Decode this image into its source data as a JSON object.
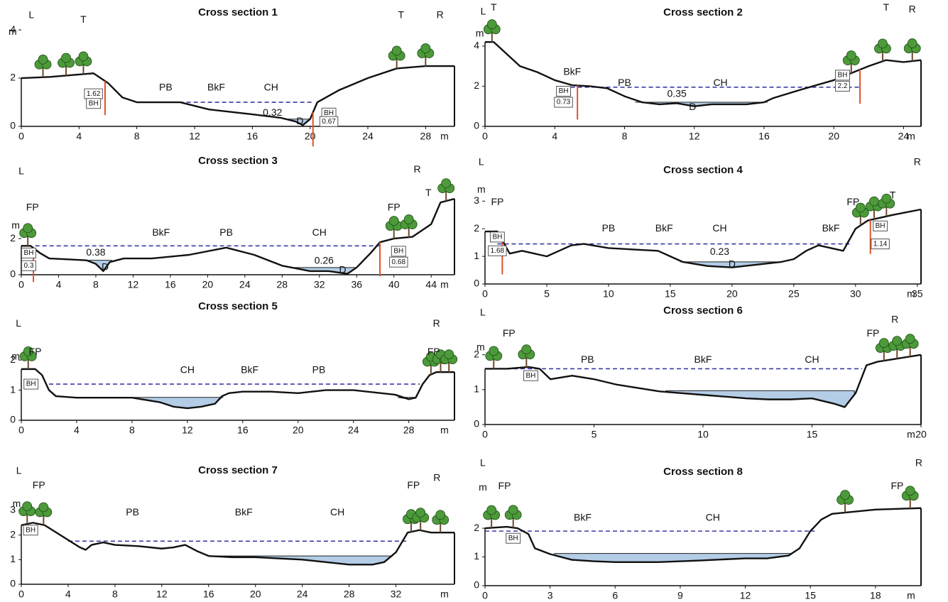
{
  "chart_data": [
    {
      "type": "profile",
      "title": "Cross section 1",
      "x": [
        0,
        2,
        4,
        5,
        6,
        7,
        8,
        11,
        13,
        16,
        18,
        19,
        19.5,
        20,
        20.5,
        22,
        24,
        26,
        28,
        30
      ],
      "values": [
        2,
        2.05,
        2.15,
        2.2,
        1.8,
        1.2,
        1.0,
        1.0,
        0.7,
        0.5,
        0.35,
        0.2,
        0.05,
        0.3,
        1.0,
        1.5,
        2.0,
        2.4,
        2.5,
        2.5
      ],
      "xlim": [
        0,
        30
      ],
      "ylim": [
        0,
        4.12
      ],
      "xticks": [
        0,
        4,
        8,
        12,
        16,
        20,
        24,
        28
      ],
      "yticks": [
        0,
        2,
        4
      ],
      "x_unit": "m",
      "bankfull": {
        "level": 1.0,
        "from": 8,
        "to": 20.2
      },
      "water": [
        {
          "level": 0.3,
          "from": 18.2,
          "to": 20
        }
      ],
      "annotations": [
        {
          "text": "m",
          "x": -0.6,
          "y": 3.9
        },
        {
          "text": "L",
          "x": 0.7,
          "y": 4.6
        },
        {
          "text": "T",
          "x": 4.3,
          "y": 4.4
        },
        {
          "text": "T",
          "x": 26.3,
          "y": 4.6
        },
        {
          "text": "R",
          "x": 29,
          "y": 4.6
        },
        {
          "text": "PB",
          "x": 10,
          "y": 1.6
        },
        {
          "text": "BkF",
          "x": 13.5,
          "y": 1.6
        },
        {
          "text": "CH",
          "x": 17.3,
          "y": 1.6
        },
        {
          "text": "1.62",
          "x": 5,
          "y": 1.35,
          "box": true
        },
        {
          "text": "BH",
          "x": 5,
          "y": 0.95,
          "box": true
        },
        {
          "text": "0.32",
          "x": 17.4,
          "y": 0.55
        },
        {
          "text": "D",
          "x": 19.3,
          "y": 0.2
        },
        {
          "text": "BH",
          "x": 21.3,
          "y": 0.55,
          "box": true
        },
        {
          "text": "0.67",
          "x": 21.3,
          "y": 0.2,
          "box": true
        }
      ]
    },
    {
      "type": "profile",
      "title": "Cross section 2",
      "x": [
        0,
        0.5,
        1,
        2,
        3,
        4,
        5,
        6,
        7,
        8,
        9,
        10,
        11,
        12,
        13,
        14,
        15,
        16,
        16.5,
        18,
        20,
        22,
        23,
        24,
        25
      ],
      "values": [
        4.2,
        4.2,
        3.8,
        3.0,
        2.7,
        2.3,
        2.05,
        2.0,
        1.9,
        1.5,
        1.2,
        1.1,
        1.15,
        1.0,
        1.1,
        1.1,
        1.1,
        1.2,
        1.4,
        1.8,
        2.3,
        3.0,
        3.3,
        3.2,
        3.3
      ],
      "xlim": [
        0,
        25
      ],
      "ylim": [
        0,
        4.95
      ],
      "xticks": [
        0,
        4,
        8,
        12,
        16,
        20,
        24
      ],
      "yticks": [
        0,
        2,
        4
      ],
      "x_unit": "m",
      "bankfull": {
        "level": 1.95,
        "from": 4.5,
        "to": 21.5
      },
      "water": [
        {
          "level": 1.2,
          "from": 8.6,
          "to": 16.2
        }
      ],
      "annotations": [
        {
          "text": "m",
          "x": -0.3,
          "y": 4.6
        },
        {
          "text": "L",
          "x": -0.1,
          "y": 5.7
        },
        {
          "text": "T",
          "x": 0.5,
          "y": 5.9
        },
        {
          "text": "T",
          "x": 23,
          "y": 5.9
        },
        {
          "text": "R",
          "x": 24.5,
          "y": 5.8
        },
        {
          "text": "BkF",
          "x": 5,
          "y": 2.7
        },
        {
          "text": "PB",
          "x": 8,
          "y": 2.15
        },
        {
          "text": "CH",
          "x": 13.5,
          "y": 2.15
        },
        {
          "text": "0.35",
          "x": 11,
          "y": 1.6
        },
        {
          "text": "D",
          "x": 11.9,
          "y": 0.95
        },
        {
          "text": "BH",
          "x": 4.5,
          "y": 1.75,
          "box": true
        },
        {
          "text": "0.73",
          "x": 4.5,
          "y": 1.2,
          "box": true
        },
        {
          "text": "BH",
          "x": 20.5,
          "y": 2.55,
          "box": true
        },
        {
          "text": "2.2",
          "x": 20.5,
          "y": 2.0,
          "box": true
        }
      ]
    },
    {
      "type": "profile",
      "title": "Cross section 3",
      "x": [
        0,
        1,
        2,
        3,
        5,
        7,
        8,
        8.8,
        9.5,
        11,
        14,
        18,
        22,
        25,
        28,
        30,
        31,
        33,
        35,
        36,
        37.5,
        38.5,
        40,
        42,
        44,
        45,
        46.5
      ],
      "values": [
        1.6,
        1.6,
        1.2,
        0.9,
        0.85,
        0.8,
        0.6,
        0.2,
        0.7,
        0.9,
        0.9,
        1.1,
        1.5,
        1.1,
        0.5,
        0.3,
        0.2,
        0.2,
        0.05,
        0.4,
        1.2,
        1.8,
        2.0,
        2.1,
        2.8,
        4.0,
        4.2
      ],
      "xlim": [
        0,
        46.5
      ],
      "ylim": [
        0,
        5.5
      ],
      "xticks": [
        0,
        4,
        8,
        12,
        16,
        20,
        24,
        28,
        32,
        36,
        40,
        44
      ],
      "yticks": [
        0,
        2
      ],
      "x_unit": "m",
      "bankfull": {
        "level": 1.6,
        "from": 1.5,
        "to": 38.5
      },
      "water": [
        {
          "level": 0.8,
          "from": 7.2,
          "to": 9.7
        },
        {
          "level": 0.4,
          "from": 29,
          "to": 36
        }
      ],
      "annotations": [
        {
          "text": "L",
          "x": 0,
          "y": 5.7
        },
        {
          "text": "m",
          "x": -0.6,
          "y": 2.7
        },
        {
          "text": "FP",
          "x": 1.2,
          "y": 3.7
        },
        {
          "text": "R",
          "x": 42.5,
          "y": 5.8
        },
        {
          "text": "T",
          "x": 43.7,
          "y": 4.5
        },
        {
          "text": "FP",
          "x": 40,
          "y": 3.7
        },
        {
          "text": "BkF",
          "x": 15,
          "y": 2.3
        },
        {
          "text": "PB",
          "x": 22,
          "y": 2.3
        },
        {
          "text": "CH",
          "x": 32,
          "y": 2.3
        },
        {
          "text": "0.38",
          "x": 8,
          "y": 1.2
        },
        {
          "text": "D",
          "x": 9,
          "y": 0.4
        },
        {
          "text": "0.26",
          "x": 32.5,
          "y": 0.75
        },
        {
          "text": "D",
          "x": 34.5,
          "y": 0.25
        },
        {
          "text": "BH",
          "x": 0.8,
          "y": 1.2,
          "box": true
        },
        {
          "text": "0.3",
          "x": 0.8,
          "y": 0.5,
          "box": true
        },
        {
          "text": "BH",
          "x": 40.5,
          "y": 1.3,
          "box": true
        },
        {
          "text": "0.68",
          "x": 40.5,
          "y": 0.7,
          "box": true
        }
      ]
    },
    {
      "type": "profile",
      "title": "Cross section 4",
      "x": [
        0,
        1,
        1.5,
        2,
        3,
        4,
        5,
        6,
        7,
        8,
        10,
        12,
        14,
        15,
        16,
        18,
        20,
        22,
        24,
        25,
        26,
        27,
        28,
        29,
        30,
        31,
        33,
        35.3
      ],
      "values": [
        1.9,
        1.9,
        1.5,
        1.1,
        1.2,
        1.1,
        1.0,
        1.2,
        1.4,
        1.45,
        1.3,
        1.25,
        1.2,
        1.0,
        0.8,
        0.65,
        0.6,
        0.7,
        0.8,
        0.9,
        1.2,
        1.4,
        1.3,
        1.2,
        2.0,
        2.3,
        2.5,
        2.7
      ],
      "xlim": [
        0,
        35.3
      ],
      "ylim": [
        0,
        3.6
      ],
      "xticks": [
        0,
        5,
        10,
        15,
        20,
        25,
        30,
        35
      ],
      "yticks": [
        0,
        1,
        2,
        3
      ],
      "x_unit": "m",
      "bankfull": {
        "level": 1.45,
        "from": 1,
        "to": 29.6
      },
      "water": [
        {
          "level": 0.8,
          "from": 15.8,
          "to": 23.6
        }
      ],
      "annotations": [
        {
          "text": "L",
          "x": -0.3,
          "y": 4.4
        },
        {
          "text": "m",
          "x": -0.3,
          "y": 3.4
        },
        {
          "text": "FP",
          "x": 1,
          "y": 2.95
        },
        {
          "text": "T",
          "x": 33,
          "y": 3.2
        },
        {
          "text": "R",
          "x": 35,
          "y": 4.4
        },
        {
          "text": "FP",
          "x": 29.8,
          "y": 2.95
        },
        {
          "text": "PB",
          "x": 10,
          "y": 2.0
        },
        {
          "text": "BkF",
          "x": 14.5,
          "y": 2.0
        },
        {
          "text": "CH",
          "x": 19,
          "y": 2.0
        },
        {
          "text": "BkF",
          "x": 28,
          "y": 2.0
        },
        {
          "text": "0.23",
          "x": 19,
          "y": 1.15
        },
        {
          "text": "D",
          "x": 20,
          "y": 0.7
        },
        {
          "text": "BH",
          "x": 1,
          "y": 1.7,
          "box": true
        },
        {
          "text": "1.68",
          "x": 1,
          "y": 1.2,
          "box": true
        },
        {
          "text": "BH",
          "x": 32,
          "y": 2.1,
          "box": true
        },
        {
          "text": "1.14",
          "x": 32,
          "y": 1.45,
          "box": true
        }
      ]
    },
    {
      "type": "profile",
      "title": "Cross section 5",
      "x": [
        0,
        1,
        1.5,
        2,
        2.5,
        4,
        6,
        8,
        10,
        11,
        12,
        13,
        14,
        14.5,
        15,
        16,
        18,
        20,
        22,
        24,
        26,
        27,
        28,
        28.5,
        29,
        29.5,
        30,
        31.3
      ],
      "values": [
        1.7,
        1.7,
        1.5,
        1.0,
        0.8,
        0.75,
        0.75,
        0.75,
        0.6,
        0.45,
        0.4,
        0.45,
        0.55,
        0.8,
        0.9,
        0.95,
        0.95,
        0.9,
        1.0,
        1.0,
        0.9,
        0.85,
        0.7,
        0.75,
        1.2,
        1.5,
        1.6,
        1.6
      ],
      "xlim": [
        0,
        31.3
      ],
      "ylim": [
        0,
        3.3
      ],
      "xticks": [
        0,
        4,
        8,
        12,
        16,
        20,
        24,
        28
      ],
      "yticks": [
        0,
        1,
        2
      ],
      "x_unit": "m",
      "bankfull": {
        "level": 1.2,
        "from": 2,
        "to": 28.8
      },
      "water": [
        {
          "level": 0.76,
          "from": 7.5,
          "to": 14.6
        },
        {
          "level": 0.76,
          "from": 27.2,
          "to": 28.5
        }
      ],
      "annotations": [
        {
          "text": "L",
          "x": -0.2,
          "y": 3.2
        },
        {
          "text": "m",
          "x": -0.4,
          "y": 2.1
        },
        {
          "text": "FP",
          "x": 1,
          "y": 2.25
        },
        {
          "text": "R",
          "x": 30,
          "y": 3.2
        },
        {
          "text": "FP",
          "x": 29.8,
          "y": 2.25
        },
        {
          "text": "CH",
          "x": 12,
          "y": 1.65
        },
        {
          "text": "BkF",
          "x": 16.5,
          "y": 1.65
        },
        {
          "text": "PB",
          "x": 21.5,
          "y": 1.65
        },
        {
          "text": "BH",
          "x": 0.7,
          "y": 1.2,
          "box": true
        }
      ]
    },
    {
      "type": "profile",
      "title": "Cross section 6",
      "x": [
        0,
        1,
        2,
        2.5,
        3,
        4,
        5,
        6,
        7,
        8,
        9,
        10,
        11,
        12,
        13,
        14,
        15,
        16,
        16.5,
        17,
        17.5,
        18,
        19,
        20
      ],
      "values": [
        1.6,
        1.6,
        1.65,
        1.6,
        1.3,
        1.4,
        1.3,
        1.15,
        1.05,
        0.95,
        0.9,
        0.85,
        0.8,
        0.75,
        0.72,
        0.72,
        0.75,
        0.6,
        0.5,
        0.9,
        1.7,
        1.8,
        1.9,
        2.0
      ],
      "xlim": [
        0,
        20
      ],
      "ylim": [
        0,
        2.85
      ],
      "xticks": [
        0,
        5,
        10,
        15,
        20
      ],
      "yticks": [
        0,
        1,
        2
      ],
      "x_unit": "m",
      "bankfull": {
        "level": 1.6,
        "from": 0,
        "to": 17.3
      },
      "water": [
        {
          "level": 0.97,
          "from": 8.3,
          "to": 16.95
        }
      ],
      "annotations": [
        {
          "text": "L",
          "x": -0.1,
          "y": 3.2
        },
        {
          "text": "FP",
          "x": 1.1,
          "y": 2.6
        },
        {
          "text": "m",
          "x": -0.2,
          "y": 2.2
        },
        {
          "text": "FP",
          "x": 17.8,
          "y": 2.6
        },
        {
          "text": "R",
          "x": 18.8,
          "y": 3.0
        },
        {
          "text": "PB",
          "x": 4.7,
          "y": 1.85
        },
        {
          "text": "BkF",
          "x": 10,
          "y": 1.85
        },
        {
          "text": "CH",
          "x": 15,
          "y": 1.85
        },
        {
          "text": "BH",
          "x": 2.1,
          "y": 1.4,
          "box": true
        }
      ]
    },
    {
      "type": "profile",
      "title": "Cross section 7",
      "x": [
        0,
        1,
        2,
        3,
        4,
        5,
        5.5,
        6,
        7,
        8,
        10,
        12,
        13,
        14,
        15,
        16,
        18,
        20,
        24,
        26,
        28,
        30,
        31,
        32,
        33,
        34,
        35,
        37
      ],
      "values": [
        2.4,
        2.5,
        2.4,
        2.1,
        1.8,
        1.5,
        1.4,
        1.6,
        1.7,
        1.6,
        1.55,
        1.45,
        1.5,
        1.6,
        1.35,
        1.15,
        1.1,
        1.1,
        1.0,
        0.9,
        0.8,
        0.8,
        0.9,
        1.3,
        2.1,
        2.2,
        2.1,
        2.1
      ],
      "xlim": [
        0,
        37
      ],
      "ylim": [
        0,
        4.04
      ],
      "xticks": [
        0,
        4,
        8,
        12,
        16,
        20,
        24,
        28,
        32
      ],
      "yticks": [
        0,
        1,
        2,
        3
      ],
      "x_unit": "m",
      "bankfull": {
        "level": 1.75,
        "from": 4,
        "to": 33
      },
      "water": [
        {
          "level": 1.15,
          "from": 16,
          "to": 31.7
        }
      ],
      "annotations": [
        {
          "text": "L",
          "x": -0.2,
          "y": 4.6
        },
        {
          "text": "FP",
          "x": 1.5,
          "y": 4.0
        },
        {
          "text": "m",
          "x": -0.4,
          "y": 3.25
        },
        {
          "text": "FP",
          "x": 33.5,
          "y": 4.0
        },
        {
          "text": "R",
          "x": 35.5,
          "y": 4.3
        },
        {
          "text": "PB",
          "x": 9.5,
          "y": 2.9
        },
        {
          "text": "BkF",
          "x": 19,
          "y": 2.9
        },
        {
          "text": "CH",
          "x": 27,
          "y": 2.9
        },
        {
          "text": "BH",
          "x": 0.8,
          "y": 2.2,
          "box": true
        }
      ]
    },
    {
      "type": "profile",
      "title": "Cross section 8",
      "x": [
        0,
        1,
        1.5,
        2,
        2.3,
        3,
        4,
        5,
        6,
        8,
        10,
        12,
        13,
        14,
        14.5,
        15,
        15.5,
        16,
        18,
        20.1
      ],
      "values": [
        2.0,
        2.05,
        2.0,
        1.8,
        1.3,
        1.1,
        0.9,
        0.85,
        0.82,
        0.82,
        0.88,
        0.95,
        0.95,
        1.05,
        1.3,
        1.9,
        2.3,
        2.5,
        2.65,
        2.7
      ],
      "xlim": [
        0,
        20.1
      ],
      "ylim": [
        0,
        3.46
      ],
      "xticks": [
        0,
        3,
        6,
        9,
        12,
        15,
        18
      ],
      "yticks": [
        0,
        1,
        2
      ],
      "x_unit": "m",
      "bankfull": {
        "level": 1.9,
        "from": 0,
        "to": 15.2
      },
      "water": [
        {
          "level": 1.12,
          "from": 3.2,
          "to": 14.1
        }
      ],
      "annotations": [
        {
          "text": "L",
          "x": -0.1,
          "y": 4.25
        },
        {
          "text": "m",
          "x": -0.1,
          "y": 3.4
        },
        {
          "text": "FP",
          "x": 0.9,
          "y": 3.45
        },
        {
          "text": "FP",
          "x": 19,
          "y": 3.45
        },
        {
          "text": "R",
          "x": 20,
          "y": 4.25
        },
        {
          "text": "BkF",
          "x": 4.5,
          "y": 2.35
        },
        {
          "text": "CH",
          "x": 10.5,
          "y": 2.35
        },
        {
          "text": "BH",
          "x": 1.3,
          "y": 1.65,
          "box": true
        }
      ]
    }
  ]
}
